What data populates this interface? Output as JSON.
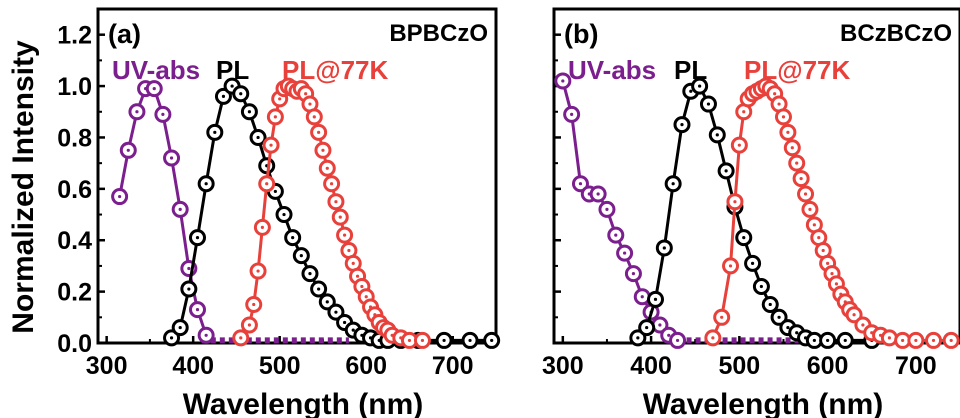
{
  "figure": {
    "ylabel": "Normalized Intensity",
    "colors": {
      "uv": "#7b1f8e",
      "pl": "#000000",
      "pl77": "#e8403a",
      "axis": "#000000"
    }
  },
  "chart_data": [
    {
      "type": "line",
      "panel_label": "(a)",
      "compound": "BPBCzO",
      "xlabel": "Wavelength (nm)",
      "ylabel": "Normalized Intensity",
      "xlim": [
        290,
        750
      ],
      "ylim": [
        0,
        1.3
      ],
      "xticks": [
        300,
        400,
        500,
        600,
        700
      ],
      "yticks": [
        0.0,
        0.2,
        0.4,
        0.6,
        0.8,
        1.0,
        1.2
      ],
      "grid": false,
      "series": [
        {
          "name": "UV-abs",
          "color": "#7b1f8e",
          "marker": "circle",
          "x": [
            315,
            325,
            335,
            345,
            355,
            365,
            375,
            385,
            395,
            405,
            415
          ],
          "y": [
            0.57,
            0.75,
            0.9,
            0.99,
            0.99,
            0.89,
            0.72,
            0.52,
            0.29,
            0.13,
            0.03
          ],
          "baseline_from": 410,
          "baseline_to": 580,
          "baseline_value": 0.01
        },
        {
          "name": "PL",
          "color": "#000000",
          "marker": "circle",
          "x": [
            375,
            385,
            395,
            405,
            415,
            425,
            435,
            445,
            455,
            465,
            475,
            485,
            495,
            505,
            515,
            525,
            535,
            545,
            555,
            565,
            575,
            585,
            595,
            605,
            615,
            625,
            640,
            660,
            690,
            720,
            745
          ],
          "y": [
            0.02,
            0.06,
            0.21,
            0.41,
            0.62,
            0.82,
            0.96,
            1.0,
            0.97,
            0.9,
            0.8,
            0.69,
            0.59,
            0.5,
            0.41,
            0.34,
            0.27,
            0.21,
            0.16,
            0.12,
            0.08,
            0.05,
            0.03,
            0.02,
            0.01,
            0.01,
            0.01,
            0.01,
            0.01,
            0.01,
            0.01
          ]
        },
        {
          "name": "PL@77K",
          "color": "#e8403a",
          "marker": "circle",
          "x": [
            455,
            465,
            470,
            475,
            480,
            485,
            490,
            495,
            500,
            505,
            510,
            515,
            520,
            525,
            530,
            535,
            540,
            545,
            550,
            555,
            560,
            565,
            570,
            575,
            580,
            585,
            590,
            595,
            600,
            605,
            610,
            615,
            620,
            625,
            630,
            640,
            650,
            665
          ],
          "y": [
            0.02,
            0.07,
            0.15,
            0.28,
            0.45,
            0.62,
            0.77,
            0.88,
            0.95,
            0.99,
            1.0,
            0.99,
            0.98,
            0.99,
            0.97,
            0.93,
            0.88,
            0.82,
            0.75,
            0.68,
            0.62,
            0.55,
            0.49,
            0.42,
            0.36,
            0.31,
            0.26,
            0.22,
            0.18,
            0.14,
            0.11,
            0.08,
            0.06,
            0.05,
            0.03,
            0.02,
            0.01,
            0.01
          ]
        }
      ]
    },
    {
      "type": "line",
      "panel_label": "(b)",
      "compound": "BCzBCzO",
      "xlabel": "Wavelength (nm)",
      "ylabel": "",
      "xlim": [
        290,
        750
      ],
      "ylim": [
        0,
        1.3
      ],
      "xticks": [
        300,
        400,
        500,
        600,
        700
      ],
      "yticks": [
        0.0,
        0.2,
        0.4,
        0.6,
        0.8,
        1.0,
        1.2
      ],
      "grid": false,
      "series": [
        {
          "name": "UV-abs",
          "color": "#7b1f8e",
          "marker": "circle",
          "x": [
            300,
            310,
            320,
            330,
            340,
            350,
            360,
            370,
            380,
            390,
            400,
            410,
            420,
            430
          ],
          "y": [
            1.02,
            0.89,
            0.62,
            0.58,
            0.58,
            0.52,
            0.42,
            0.35,
            0.27,
            0.18,
            0.12,
            0.07,
            0.03,
            0.01
          ],
          "baseline_from": 430,
          "baseline_to": 600,
          "baseline_value": 0.01
        },
        {
          "name": "PL",
          "color": "#000000",
          "marker": "circle",
          "x": [
            385,
            395,
            405,
            415,
            425,
            435,
            445,
            455,
            465,
            475,
            485,
            495,
            505,
            515,
            525,
            535,
            545,
            555,
            565,
            575,
            585,
            600,
            620,
            650
          ],
          "y": [
            0.02,
            0.06,
            0.17,
            0.37,
            0.62,
            0.85,
            0.98,
            1.0,
            0.93,
            0.81,
            0.67,
            0.53,
            0.41,
            0.31,
            0.22,
            0.15,
            0.1,
            0.06,
            0.04,
            0.02,
            0.01,
            0.01,
            0.01,
            0.01
          ]
        },
        {
          "name": "PL@77K",
          "color": "#e8403a",
          "marker": "circle",
          "x": [
            470,
            480,
            490,
            495,
            500,
            505,
            510,
            515,
            520,
            525,
            530,
            535,
            540,
            545,
            550,
            555,
            560,
            565,
            570,
            575,
            580,
            585,
            590,
            595,
            600,
            605,
            610,
            615,
            620,
            625,
            630,
            640,
            650,
            660,
            670,
            685,
            700,
            720,
            740
          ],
          "y": [
            0.02,
            0.1,
            0.3,
            0.55,
            0.77,
            0.9,
            0.95,
            0.97,
            0.98,
            0.99,
            1.0,
            0.99,
            0.97,
            0.93,
            0.88,
            0.82,
            0.76,
            0.7,
            0.64,
            0.58,
            0.52,
            0.46,
            0.41,
            0.36,
            0.31,
            0.27,
            0.23,
            0.19,
            0.16,
            0.13,
            0.11,
            0.07,
            0.04,
            0.03,
            0.02,
            0.01,
            0.01,
            0.01,
            0.01
          ]
        }
      ]
    }
  ]
}
